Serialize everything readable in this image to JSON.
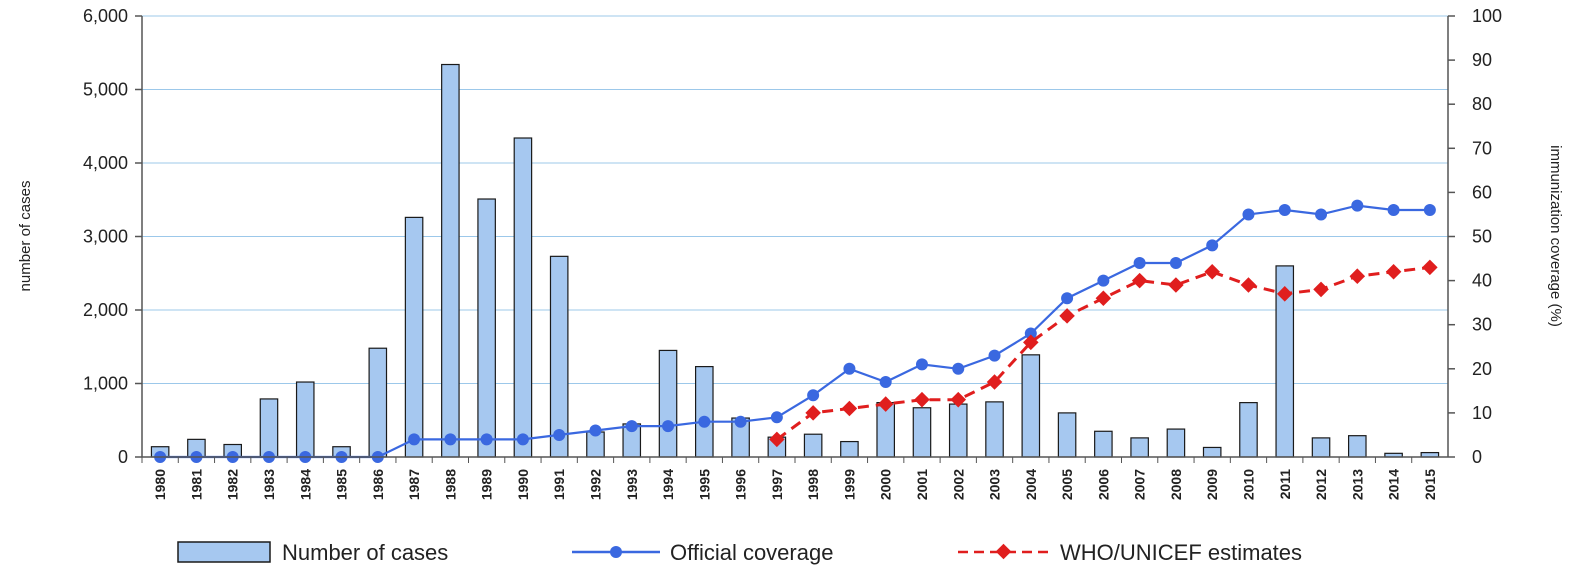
{
  "chart_data": {
    "type": "bar",
    "title": "",
    "xlabel": "",
    "ylabel": "number of cases",
    "y2label": "immunization coverage (%)",
    "ylim": [
      0,
      6000
    ],
    "y2lim": [
      0,
      100
    ],
    "grid": true,
    "legend_position": "bottom",
    "yticks": [
      "0",
      "1,000",
      "2,000",
      "3,000",
      "4,000",
      "5,000",
      "6,000"
    ],
    "y2ticks": [
      "0",
      "10",
      "20",
      "30",
      "40",
      "50",
      "60",
      "70",
      "80",
      "90",
      "100"
    ],
    "categories": [
      "1980",
      "1981",
      "1982",
      "1983",
      "1984",
      "1985",
      "1986",
      "1987",
      "1988",
      "1989",
      "1990",
      "1991",
      "1992",
      "1993",
      "1994",
      "1995",
      "1996",
      "1997",
      "1998",
      "1999",
      "2000",
      "2001",
      "2002",
      "2003",
      "2004",
      "2005",
      "2006",
      "2007",
      "2008",
      "2009",
      "2010",
      "2011",
      "2012",
      "2013",
      "2014",
      "2015"
    ],
    "colors": {
      "bars_fill": "#a6c8f0",
      "bars_stroke": "#1a1a1a",
      "official": "#3a68e0",
      "who": "#e01e1e",
      "grid": "#9cc8ea"
    },
    "series": [
      {
        "name": "Number of cases",
        "kind": "bar",
        "axis": "left",
        "values": [
          140,
          240,
          170,
          790,
          1020,
          140,
          1480,
          3260,
          5340,
          3510,
          4340,
          2730,
          340,
          450,
          1450,
          1230,
          530,
          270,
          310,
          210,
          740,
          670,
          720,
          750,
          1390,
          600,
          350,
          260,
          380,
          130,
          740,
          2600,
          260,
          290,
          50,
          60
        ]
      },
      {
        "name": "Official coverage",
        "kind": "line",
        "axis": "right",
        "values": [
          0,
          0,
          0,
          0,
          0,
          0,
          0,
          4,
          4,
          4,
          4,
          5,
          6,
          7,
          7,
          8,
          8,
          9,
          14,
          20,
          17,
          21,
          20,
          23,
          28,
          36,
          40,
          44,
          44,
          48,
          55,
          56,
          55,
          57,
          56,
          56
        ]
      },
      {
        "name": "WHO/UNICEF estimates",
        "kind": "line",
        "axis": "right",
        "values": [
          null,
          null,
          null,
          null,
          null,
          null,
          null,
          null,
          null,
          null,
          null,
          null,
          null,
          null,
          null,
          null,
          null,
          4,
          10,
          11,
          12,
          13,
          13,
          17,
          26,
          32,
          36,
          40,
          39,
          42,
          39,
          37,
          38,
          41,
          42,
          43
        ]
      }
    ]
  }
}
